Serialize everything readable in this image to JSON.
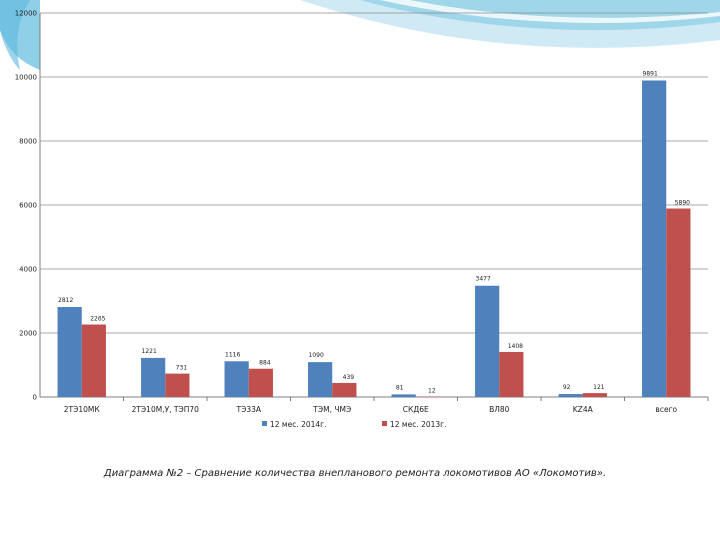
{
  "chart_data": {
    "type": "bar",
    "categories": [
      "2ТЭ10МК",
      "2ТЭ10М,У, ТЭП70",
      "ТЭ33А",
      "ТЭМ, ЧМЭ",
      "СКД6Е",
      "ВЛ80",
      "KZ4A",
      "всего"
    ],
    "series": [
      {
        "name": "12 мес. 2014г.",
        "values": [
          2812,
          1221,
          1116,
          1090,
          81,
          3477,
          92,
          9891
        ],
        "labels": [
          "2812",
          "1221",
          "1116",
          "1090",
          "81",
          "3477",
          "92",
          "9891"
        ],
        "color": "#4f81bd"
      },
      {
        "name": "12 мес. 2013г.",
        "values": [
          2265,
          731,
          884,
          439,
          12,
          1408,
          121,
          5890
        ],
        "labels": [
          "2265",
          "731",
          "884",
          "439",
          "12",
          "1408",
          "121",
          "5890"
        ],
        "color": "#c0504d"
      }
    ],
    "ylim": [
      0,
      12000
    ],
    "yticks": [
      0,
      2000,
      4000,
      6000,
      8000,
      10000,
      12000
    ],
    "ytick_labels": [
      "0",
      "2000",
      "4000",
      "6000",
      "8000",
      "10000",
      "12000"
    ],
    "grid": true,
    "legend_position": "bottom",
    "title": "",
    "xlabel": "",
    "ylabel": ""
  },
  "caption": "Диаграмма №2 – Сравнение количества внепланового ремонта локомотивов АО «Локомотив».",
  "colors": {
    "grid": "#8c8c8c",
    "axis": "#7f7f7f",
    "swoosh": "#9fd6ea",
    "swoosh_dark": "#5bb8de"
  }
}
